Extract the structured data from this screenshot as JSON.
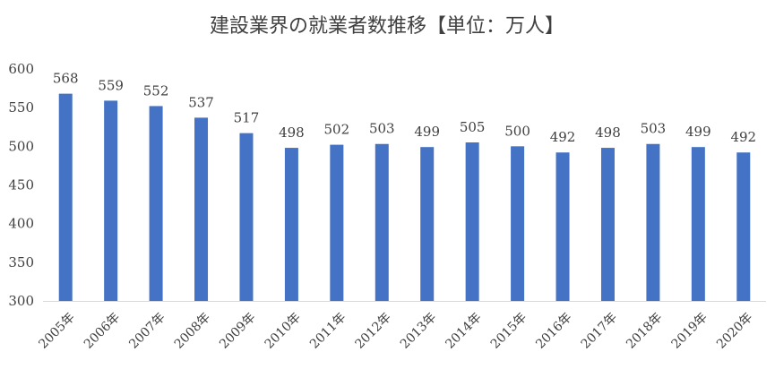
{
  "chart_data": {
    "type": "bar",
    "title": "建設業界の就業者数推移【単位：万人】",
    "categories": [
      "2005年",
      "2006年",
      "2007年",
      "2008年",
      "2009年",
      "2010年",
      "2011年",
      "2012年",
      "2013年",
      "2014年",
      "2015年",
      "2016年",
      "2017年",
      "2018年",
      "2019年",
      "2020年"
    ],
    "values": [
      568,
      559,
      552,
      537,
      517,
      498,
      502,
      503,
      499,
      505,
      500,
      492,
      498,
      503,
      499,
      492
    ],
    "ylim": [
      300,
      600
    ],
    "yticks": [
      300,
      350,
      400,
      450,
      500,
      550,
      600
    ],
    "grid": false,
    "legend": "none",
    "data_labels": true,
    "bar_color": "#4472C4"
  }
}
